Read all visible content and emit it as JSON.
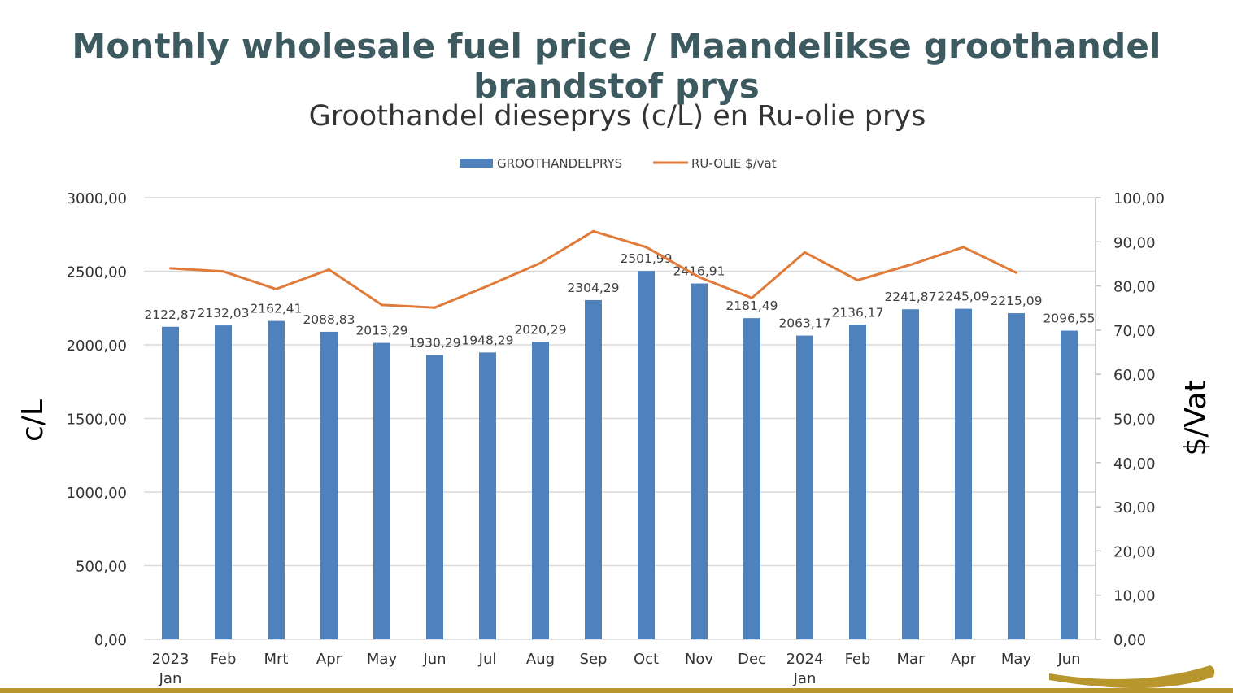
{
  "slide_title": "Monthly wholesale fuel price / Maandelikse groothandel brandstof prys",
  "colors": {
    "title": "#3c5a5f",
    "bar": "#4f81bd",
    "line": "#e07b39",
    "grid": "#d9d9d9",
    "accent_swoosh": "#b8962e"
  },
  "chart_data": {
    "type": "bar",
    "title": "Groothandel dieseprys (c/L) en Ru-olie prys",
    "legend_position": "top",
    "grid": true,
    "categories": [
      "Jan",
      "Feb",
      "Mrt",
      "Apr",
      "May",
      "Jun",
      "Jul",
      "Aug",
      "Sep",
      "Oct",
      "Nov",
      "Dec",
      "Jan",
      "Feb",
      "Mar",
      "Apr",
      "May",
      "Jun"
    ],
    "category_groups": [
      {
        "label": "2023",
        "start_index": 0
      },
      {
        "label": "2024",
        "start_index": 12
      }
    ],
    "ylabel": "c/L",
    "y2label": "$/Vat",
    "ylim": [
      0,
      3000
    ],
    "y2lim": [
      0,
      100
    ],
    "yticks": [
      "0,00",
      "500,00",
      "1000,00",
      "1500,00",
      "2000,00",
      "2500,00",
      "3000,00"
    ],
    "y2ticks": [
      "0,00",
      "10,00",
      "20,00",
      "30,00",
      "40,00",
      "50,00",
      "60,00",
      "70,00",
      "80,00",
      "90,00",
      "100,00"
    ],
    "series": [
      {
        "name": "GROOTHANDELPRYS",
        "type": "bar",
        "axis": "left",
        "values": [
          2122.87,
          2132.03,
          2162.41,
          2088.83,
          2013.29,
          1930.29,
          1948.29,
          2020.29,
          2304.29,
          2501.99,
          2416.91,
          2181.49,
          2063.17,
          2136.17,
          2241.87,
          2245.09,
          2215.09,
          2096.55
        ],
        "labels": [
          "2122,87",
          "2132,03",
          "2162,41",
          "2088,83",
          "2013,29",
          "1930,29",
          "1948,29",
          "2020,29",
          "2304,29",
          "2501,99",
          "2416,91",
          "2181,49",
          "2063,17",
          "2136,17",
          "2241,87",
          "2245,09",
          "2215,09",
          "2096,55"
        ]
      },
      {
        "name": "RU-OLIE $/vat",
        "type": "line",
        "axis": "right",
        "values": [
          84.0,
          83.3,
          79.3,
          83.7,
          75.7,
          75.1,
          80.0,
          85.2,
          92.4,
          88.8,
          82.0,
          77.3,
          87.6,
          81.3,
          84.8,
          88.8,
          83.0,
          null
        ]
      }
    ]
  }
}
